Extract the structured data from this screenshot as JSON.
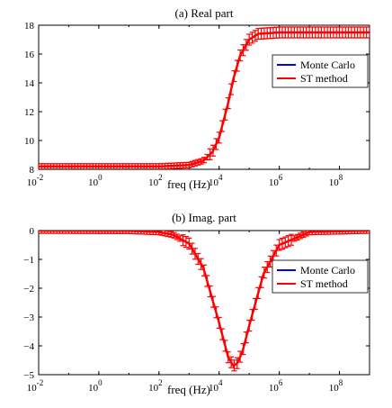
{
  "chart_data": [
    {
      "type": "line",
      "title": "(a) Real part",
      "xlabel": "freq (Hz)",
      "ylabel": "",
      "xscale": "log",
      "xlim": [
        0.01,
        1000000000
      ],
      "ylim": [
        8,
        18
      ],
      "xticks": [
        0.01,
        1,
        100,
        10000,
        1000000,
        100000000
      ],
      "xtick_labels": [
        {
          "base": "10",
          "exp": "-2"
        },
        {
          "base": "10",
          "exp": "0"
        },
        {
          "base": "10",
          "exp": "2"
        },
        {
          "base": "10",
          "exp": "4"
        },
        {
          "base": "10",
          "exp": "6"
        },
        {
          "base": "10",
          "exp": "8"
        }
      ],
      "yticks": [
        8,
        10,
        12,
        14,
        16,
        18
      ],
      "ytick_labels": [
        "8",
        "10",
        "12",
        "14",
        "16",
        "18"
      ],
      "grid": false,
      "legend_position": "right",
      "error_bars": true,
      "series": [
        {
          "name": "Monte Carlo",
          "color": "#0000ff",
          "points": [
            [
              0.01,
              8.2
            ],
            [
              10,
              8.2
            ],
            [
              100,
              8.2
            ],
            [
              1000,
              8.3
            ],
            [
              3000,
              8.6
            ],
            [
              6000,
              9.2
            ],
            [
              10000,
              10.2
            ],
            [
              20000,
              12.6
            ],
            [
              30000,
              14.3
            ],
            [
              50000,
              15.9
            ],
            [
              100000,
              17.0
            ],
            [
              200000,
              17.4
            ],
            [
              1000000,
              17.5
            ],
            [
              1000000000,
              17.5
            ]
          ]
        },
        {
          "name": "ST method",
          "color": "#ff0000",
          "points": [
            [
              0.01,
              8.2
            ],
            [
              10,
              8.2
            ],
            [
              100,
              8.2
            ],
            [
              1000,
              8.3
            ],
            [
              3000,
              8.6
            ],
            [
              6000,
              9.2
            ],
            [
              10000,
              10.2
            ],
            [
              20000,
              12.6
            ],
            [
              30000,
              14.3
            ],
            [
              50000,
              15.9
            ],
            [
              100000,
              17.0
            ],
            [
              200000,
              17.4
            ],
            [
              1000000,
              17.5
            ],
            [
              1000000000,
              17.5
            ]
          ]
        }
      ]
    },
    {
      "type": "line",
      "title": "(b) Imag. part",
      "xlabel": "freq (Hz)",
      "ylabel": "",
      "xscale": "log",
      "xlim": [
        0.01,
        1000000000
      ],
      "ylim": [
        -5,
        0
      ],
      "xticks": [
        0.01,
        1,
        100,
        10000,
        1000000,
        100000000
      ],
      "xtick_labels": [
        {
          "base": "10",
          "exp": "-2"
        },
        {
          "base": "10",
          "exp": "0"
        },
        {
          "base": "10",
          "exp": "2"
        },
        {
          "base": "10",
          "exp": "4"
        },
        {
          "base": "10",
          "exp": "6"
        },
        {
          "base": "10",
          "exp": "8"
        }
      ],
      "yticks": [
        -5,
        -4,
        -3,
        -2,
        -1,
        0
      ],
      "ytick_labels": [
        "−5",
        "−4",
        "−3",
        "−2",
        "−1",
        "0"
      ],
      "grid": false,
      "legend_position": "right",
      "error_bars": true,
      "series": [
        {
          "name": "Monte Carlo",
          "color": "#0000ff",
          "points": [
            [
              0.01,
              0
            ],
            [
              10,
              -0.01
            ],
            [
              100,
              -0.05
            ],
            [
              300,
              -0.15
            ],
            [
              1000,
              -0.45
            ],
            [
              3000,
              -1.3
            ],
            [
              10000,
              -3.2
            ],
            [
              20000,
              -4.4
            ],
            [
              30000,
              -4.7
            ],
            [
              40000,
              -4.6
            ],
            [
              60000,
              -4.2
            ],
            [
              100000,
              -3.3
            ],
            [
              300000,
              -1.5
            ],
            [
              1000000,
              -0.5
            ],
            [
              10000000,
              -0.05
            ],
            [
              1000000000,
              0
            ]
          ]
        },
        {
          "name": "ST method",
          "color": "#ff0000",
          "points": [
            [
              0.01,
              0
            ],
            [
              10,
              -0.01
            ],
            [
              100,
              -0.05
            ],
            [
              300,
              -0.15
            ],
            [
              1000,
              -0.45
            ],
            [
              3000,
              -1.3
            ],
            [
              10000,
              -3.2
            ],
            [
              20000,
              -4.4
            ],
            [
              30000,
              -4.7
            ],
            [
              40000,
              -4.6
            ],
            [
              60000,
              -4.2
            ],
            [
              100000,
              -3.3
            ],
            [
              300000,
              -1.5
            ],
            [
              1000000,
              -0.5
            ],
            [
              10000000,
              -0.05
            ],
            [
              1000000000,
              0
            ]
          ]
        }
      ]
    }
  ]
}
